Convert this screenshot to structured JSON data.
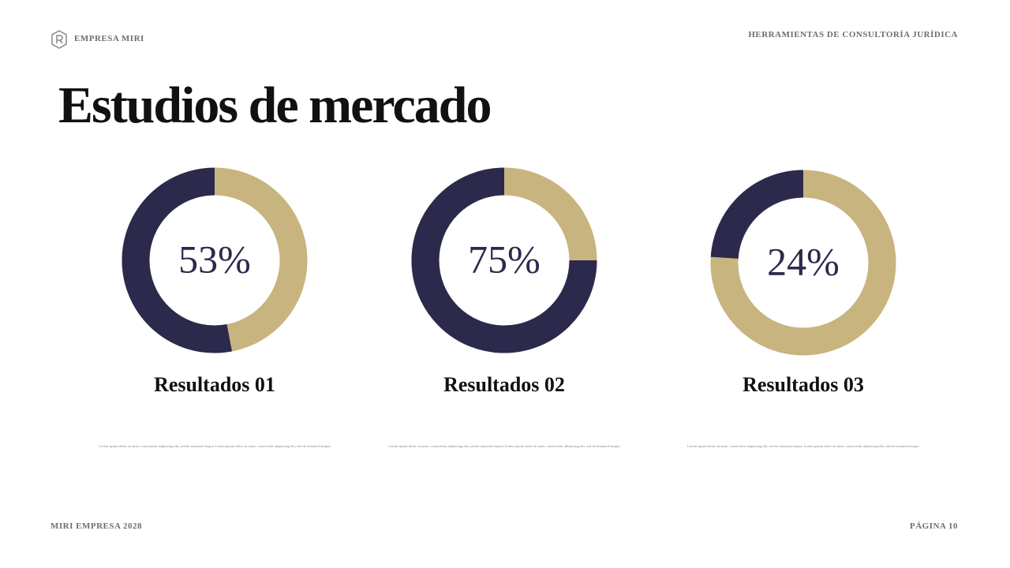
{
  "header": {
    "brand": "EMPRESA MIRI",
    "section": "HERRAMIENTAS DE CONSULTORÍA JURÍDICA"
  },
  "title": "Estudios de mercado",
  "chart_data": [
    {
      "type": "donut",
      "values": [
        53
      ],
      "value_labels": [
        "53%"
      ],
      "label": "Resultados 01",
      "color": "#2b2a4c",
      "track_color": "#c8b47e",
      "caption": "Lorem ipsum dolor sit amet, consectetur adipiscing elit, sed do eiusmod tempor Lorem ipsum dolor sit amet, consectetur adipiscing elit, sed do eiusmod tempor"
    },
    {
      "type": "donut",
      "values": [
        75
      ],
      "value_labels": [
        "75%"
      ],
      "label": "Resultados 02",
      "color": "#2b2a4c",
      "track_color": "#c8b47e",
      "caption": "Lorem ipsum dolor sit amet, consectetur adipiscing elit, sed do eiusmod tempor Lorem ipsum dolor sit amet, consectetur adipiscing elit, sed do eiusmod tempor"
    },
    {
      "type": "donut",
      "values": [
        24
      ],
      "value_labels": [
        "24%"
      ],
      "label": "Resultados 03",
      "color": "#2b2a4c",
      "track_color": "#c8b47e",
      "caption": "Lorem ipsum dolor sit amet, consectetur adipiscing elit, sed do eiusmod tempor Lorem ipsum dolor sit amet, consectetur adipiscing elit, sed do eiusmod tempor"
    }
  ],
  "footer": {
    "left": "MIRI EMPRESA 2028",
    "right": "PÁGINA 10"
  }
}
